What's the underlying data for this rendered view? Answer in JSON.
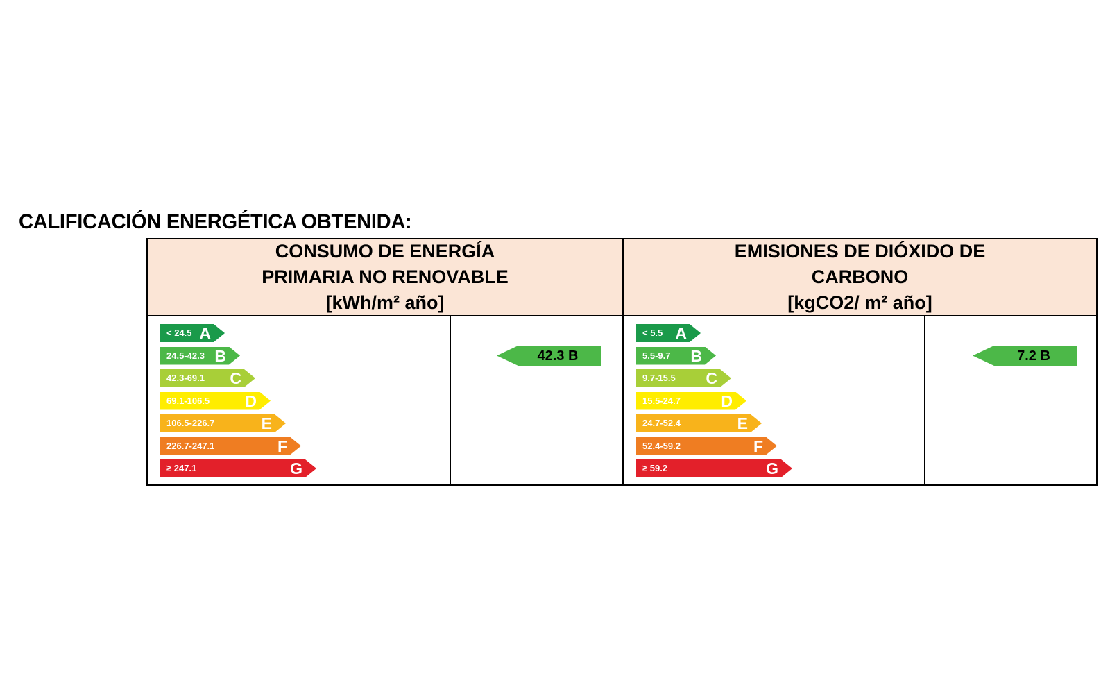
{
  "page": {
    "title": "CALIFICACIÓN ENERGÉTICA OBTENIDA:"
  },
  "consumo": {
    "header": [
      "CONSUMO DE ENERGÍA",
      "PRIMARIA NO RENOVABLE",
      "[kWh/m² año]"
    ],
    "bands": [
      {
        "range": "< 24.5",
        "letter": "A",
        "color": "#1a9a4a"
      },
      {
        "range": "24.5-42.3",
        "letter": "B",
        "color": "#4cb848"
      },
      {
        "range": "42.3-69.1",
        "letter": "C",
        "color": "#a8cf38"
      },
      {
        "range": "69.1-106.5",
        "letter": "D",
        "color": "#ffed00"
      },
      {
        "range": "106.5-226.7",
        "letter": "E",
        "color": "#f8b31b"
      },
      {
        "range": "226.7-247.1",
        "letter": "F",
        "color": "#ef7d22"
      },
      {
        "range": "≥ 247.1",
        "letter": "G",
        "color": "#e3202a"
      }
    ],
    "result": {
      "label": "42.3 B",
      "band_index": 1
    }
  },
  "emisiones": {
    "header": [
      "EMISIONES DE DIÓXIDO DE",
      "CARBONO",
      "[kgCO2/ m² año]"
    ],
    "bands": [
      {
        "range": "< 5.5",
        "letter": "A",
        "color": "#1a9a4a"
      },
      {
        "range": "5.5-9.7",
        "letter": "B",
        "color": "#4cb848"
      },
      {
        "range": "9.7-15.5",
        "letter": "C",
        "color": "#a8cf38"
      },
      {
        "range": "15.5-24.7",
        "letter": "D",
        "color": "#ffed00"
      },
      {
        "range": "24.7-52.4",
        "letter": "E",
        "color": "#f8b31b"
      },
      {
        "range": "52.4-59.2",
        "letter": "F",
        "color": "#ef7d22"
      },
      {
        "range": "≥ 59.2",
        "letter": "G",
        "color": "#e3202a"
      }
    ],
    "result": {
      "label": "7.2 B",
      "band_index": 1
    }
  }
}
